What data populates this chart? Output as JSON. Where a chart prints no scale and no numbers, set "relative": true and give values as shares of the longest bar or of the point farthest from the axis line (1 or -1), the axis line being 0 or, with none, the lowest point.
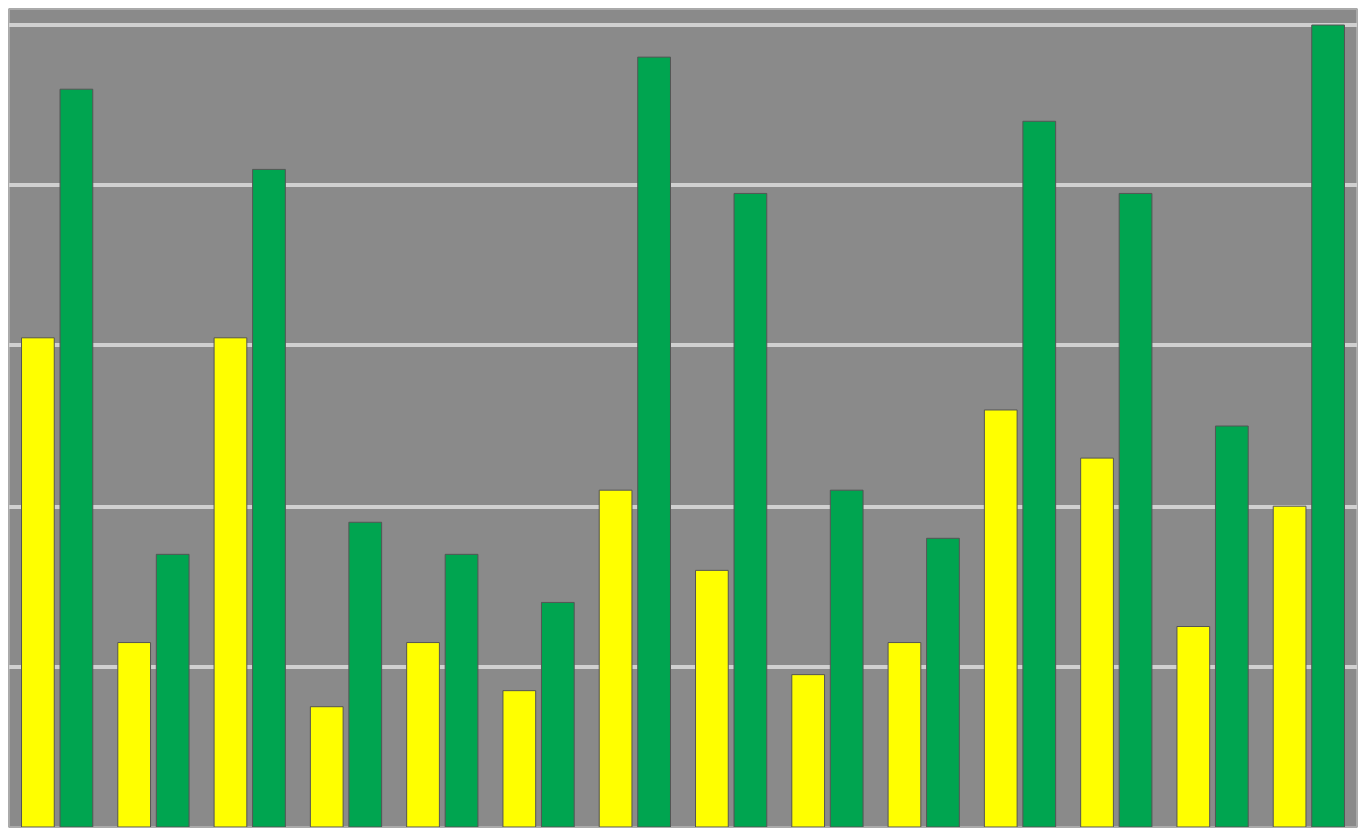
{
  "chart_data": {
    "type": "bar",
    "relative": true,
    "grid": "y",
    "categories": [
      null,
      null,
      null,
      null,
      null,
      null,
      null,
      null,
      null,
      null,
      null,
      null,
      null,
      null
    ],
    "series": [
      {
        "color": "#ffff00",
        "values": [
          0.61,
          0.23,
          0.61,
          0.15,
          0.23,
          0.17,
          0.42,
          0.32,
          0.19,
          0.23,
          0.52,
          0.46,
          0.25,
          0.4
        ]
      },
      {
        "color": "#00a550",
        "values": [
          0.92,
          0.34,
          0.82,
          0.38,
          0.34,
          0.28,
          0.96,
          0.79,
          0.42,
          0.36,
          0.88,
          0.79,
          0.5,
          1.0
        ]
      }
    ]
  }
}
